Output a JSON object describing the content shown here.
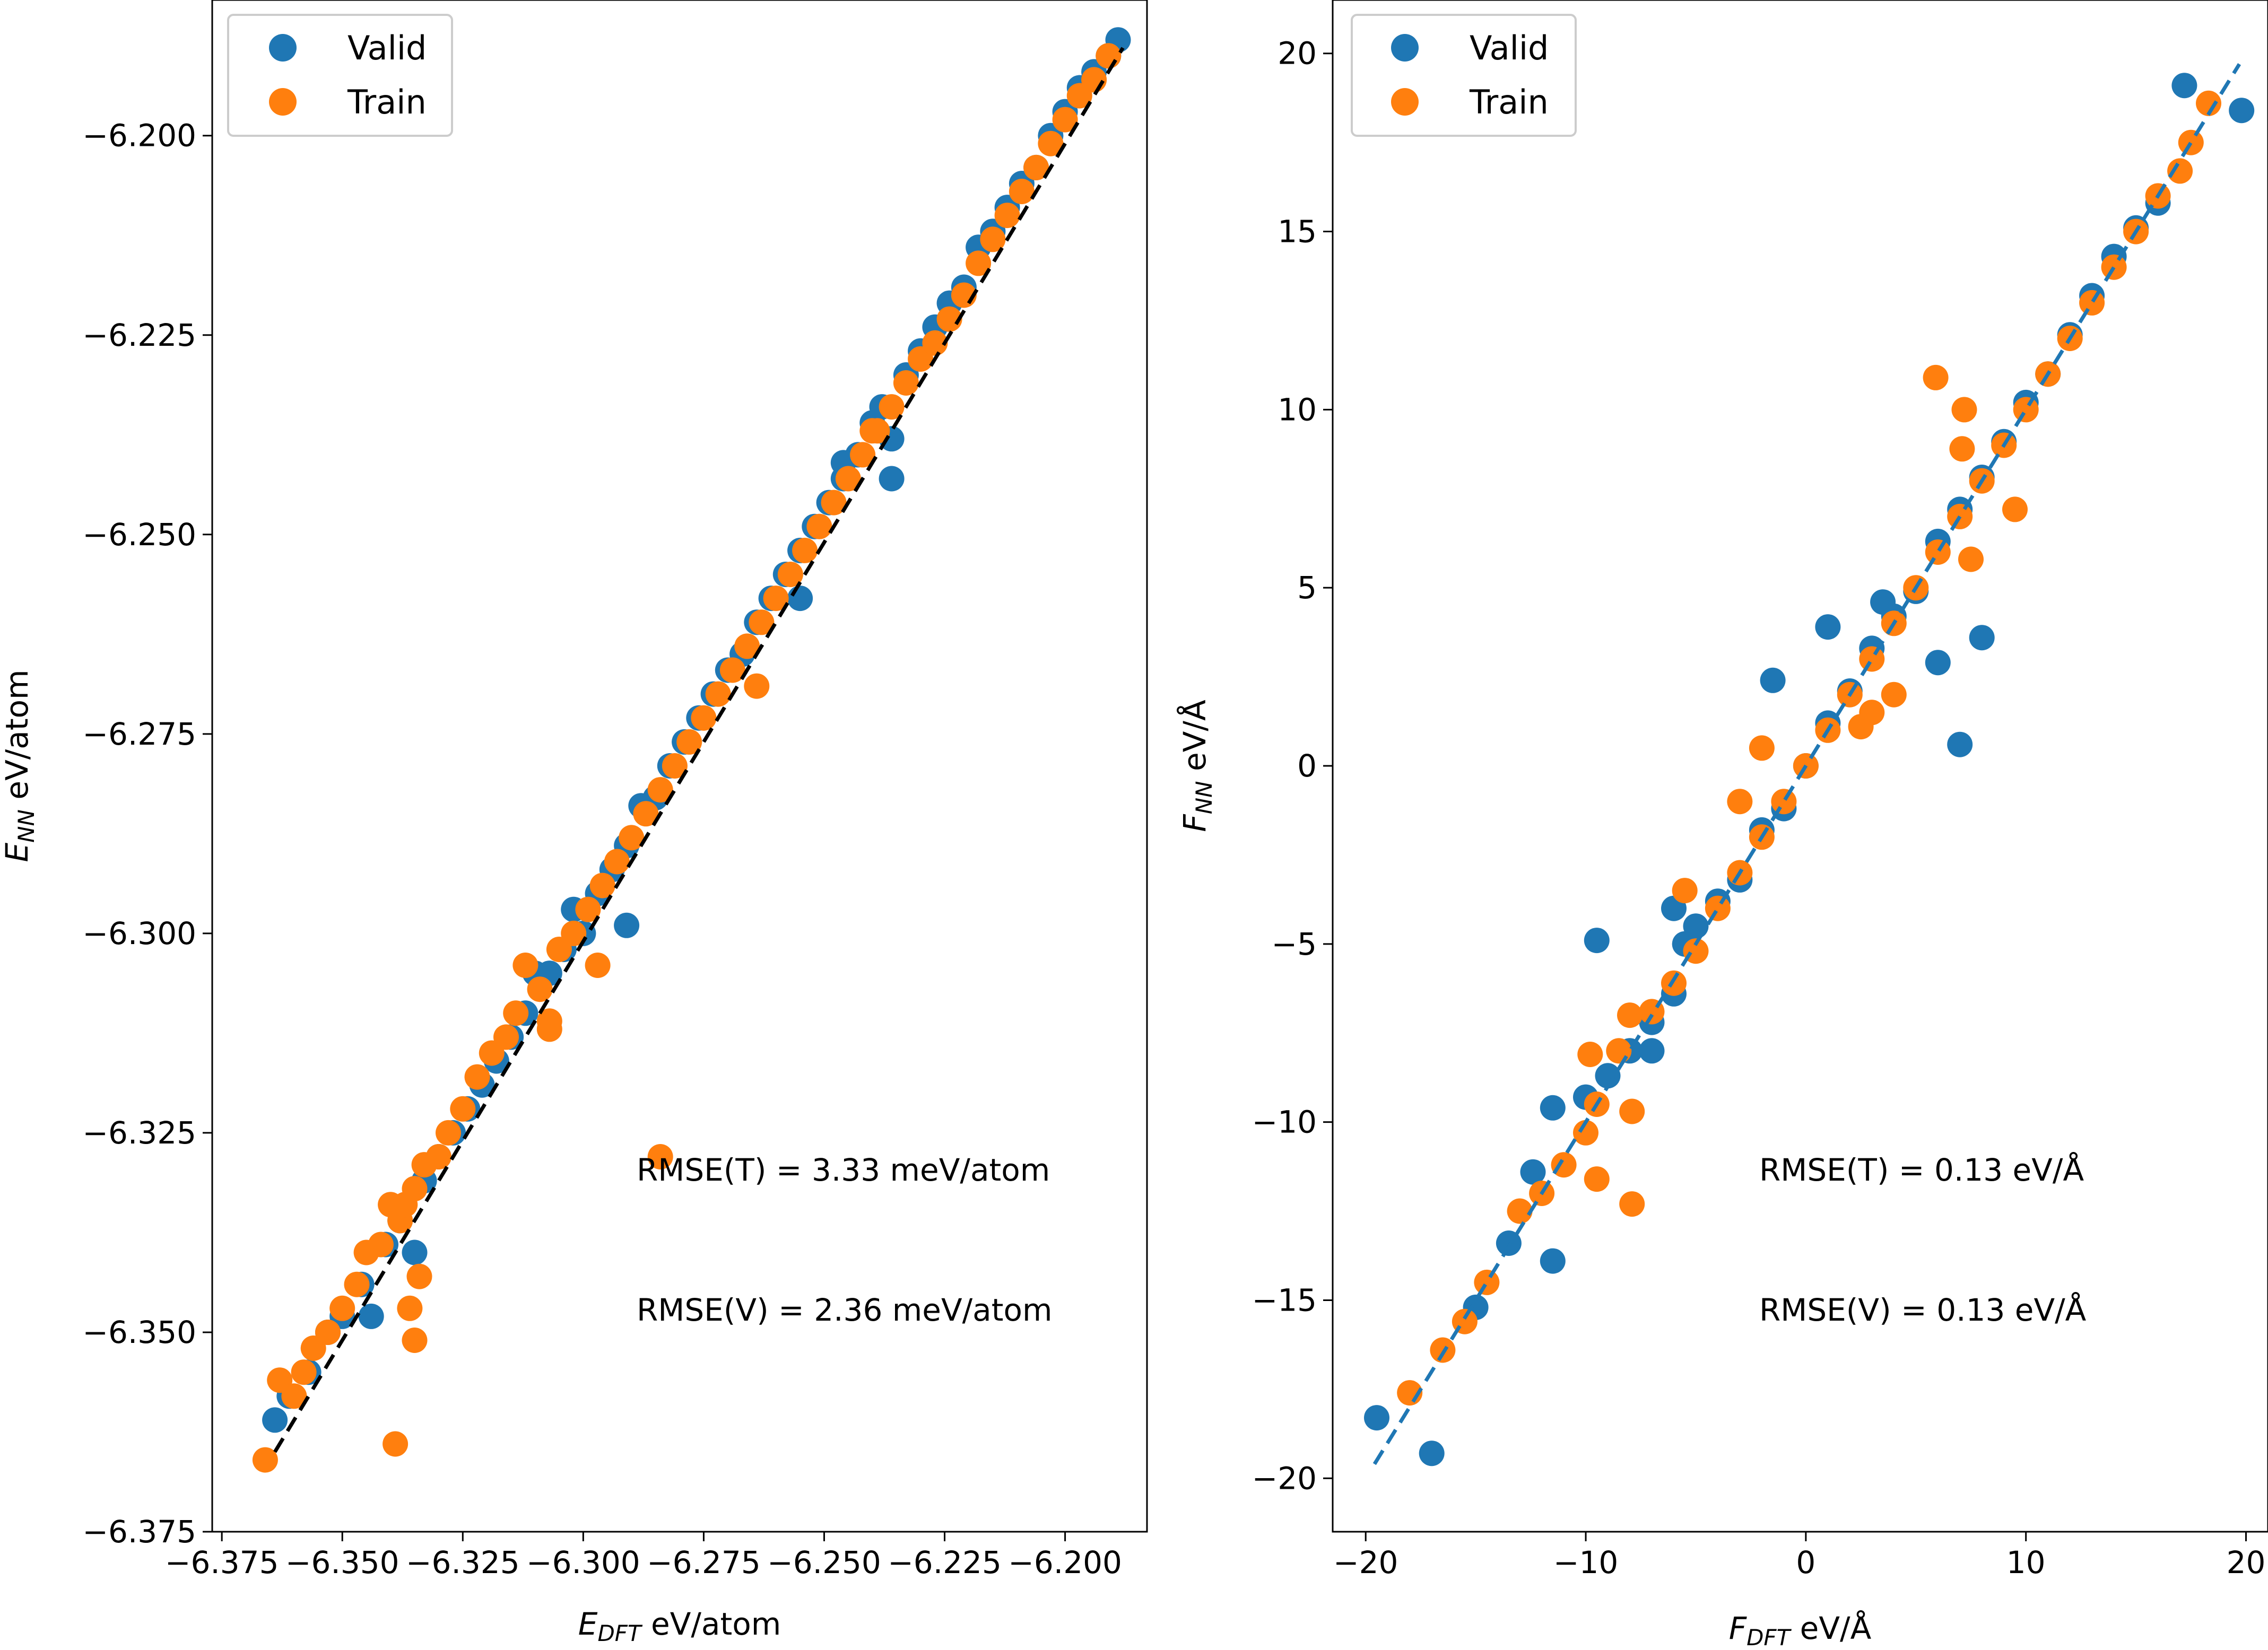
{
  "chart_data": [
    {
      "type": "scatter",
      "xlabel": "E_DFT eV/atom",
      "xlabel_symbol": "E",
      "xlabel_subscript": "DFT",
      "xlabel_unit": " eV/atom",
      "ylabel": "E_NN eV/atom",
      "ylabel_symbol": "E",
      "ylabel_subscript": "NN",
      "ylabel_unit": " eV/atom",
      "xlim": [
        -6.377,
        -6.183
      ],
      "ylim": [
        -6.375,
        -6.183
      ],
      "xticks": [
        -6.375,
        -6.35,
        -6.325,
        -6.3,
        -6.275,
        -6.25,
        -6.225,
        -6.2
      ],
      "xtick_labels": [
        "−6.375",
        "−6.350",
        "−6.325",
        "−6.300",
        "−6.275",
        "−6.250",
        "−6.225",
        "−6.200"
      ],
      "yticks": [
        -6.375,
        -6.35,
        -6.325,
        -6.3,
        -6.275,
        -6.25,
        -6.225,
        -6.2
      ],
      "ytick_labels": [
        "−6.375",
        "−6.350",
        "−6.325",
        "−6.300",
        "−6.275",
        "−6.250",
        "−6.225",
        "−6.200"
      ],
      "legend": {
        "placement": "top-left",
        "entries": [
          "Valid",
          "Train"
        ]
      },
      "reference_line": {
        "style": "dashed",
        "color": "#000000",
        "from": [
          -6.364,
          -6.365
        ],
        "to": [
          -6.188,
          -6.189
        ]
      },
      "annotations": [
        "RMSE(T) = 3.33 meV/atom",
        "RMSE(V) = 2.36 meV/atom"
      ],
      "series": [
        {
          "name": "Valid",
          "color": "#1f77b4",
          "points": [
            [
              -6.364,
              -6.361
            ],
            [
              -6.361,
              -6.358
            ],
            [
              -6.357,
              -6.355
            ],
            [
              -6.353,
              -6.35
            ],
            [
              -6.35,
              -6.348
            ],
            [
              -6.346,
              -6.344
            ],
            [
              -6.344,
              -6.348
            ],
            [
              -6.341,
              -6.339
            ],
            [
              -6.338,
              -6.336
            ],
            [
              -6.335,
              -6.34
            ],
            [
              -6.333,
              -6.331
            ],
            [
              -6.33,
              -6.328
            ],
            [
              -6.327,
              -6.325
            ],
            [
              -6.324,
              -6.322
            ],
            [
              -6.321,
              -6.319
            ],
            [
              -6.318,
              -6.316
            ],
            [
              -6.315,
              -6.313
            ],
            [
              -6.312,
              -6.31
            ],
            [
              -6.31,
              -6.305
            ],
            [
              -6.307,
              -6.305
            ],
            [
              -6.304,
              -6.302
            ],
            [
              -6.3,
              -6.3
            ],
            [
              -6.297,
              -6.295
            ],
            [
              -6.294,
              -6.292
            ],
            [
              -6.291,
              -6.289
            ],
            [
              -6.288,
              -6.284
            ],
            [
              -6.285,
              -6.283
            ],
            [
              -6.282,
              -6.279
            ],
            [
              -6.279,
              -6.276
            ],
            [
              -6.276,
              -6.273
            ],
            [
              -6.273,
              -6.27
            ],
            [
              -6.27,
              -6.267
            ],
            [
              -6.267,
              -6.265
            ],
            [
              -6.264,
              -6.261
            ],
            [
              -6.261,
              -6.258
            ],
            [
              -6.258,
              -6.255
            ],
            [
              -6.255,
              -6.252
            ],
            [
              -6.252,
              -6.249
            ],
            [
              -6.249,
              -6.246
            ],
            [
              -6.246,
              -6.243
            ],
            [
              -6.243,
              -6.24
            ],
            [
              -6.24,
              -6.236
            ],
            [
              -6.238,
              -6.234
            ],
            [
              -6.236,
              -6.238
            ],
            [
              -6.233,
              -6.23
            ],
            [
              -6.23,
              -6.227
            ],
            [
              -6.227,
              -6.224
            ],
            [
              -6.224,
              -6.221
            ],
            [
              -6.221,
              -6.219
            ],
            [
              -6.218,
              -6.214
            ],
            [
              -6.215,
              -6.212
            ],
            [
              -6.212,
              -6.209
            ],
            [
              -6.209,
              -6.206
            ],
            [
              -6.206,
              -6.204
            ],
            [
              -6.203,
              -6.2
            ],
            [
              -6.2,
              -6.197
            ],
            [
              -6.197,
              -6.194
            ],
            [
              -6.194,
              -6.192
            ],
            [
              -6.191,
              -6.19
            ],
            [
              -6.189,
              -6.188
            ],
            [
              -6.255,
              -6.258
            ],
            [
              -6.291,
              -6.299
            ],
            [
              -6.302,
              -6.297
            ],
            [
              -6.246,
              -6.241
            ],
            [
              -6.236,
              -6.243
            ]
          ]
        },
        {
          "name": "Train",
          "color": "#ff7f0e",
          "points": [
            [
              -6.366,
              -6.366
            ],
            [
              -6.363,
              -6.356
            ],
            [
              -6.36,
              -6.358
            ],
            [
              -6.358,
              -6.355
            ],
            [
              -6.356,
              -6.352
            ],
            [
              -6.353,
              -6.35
            ],
            [
              -6.35,
              -6.347
            ],
            [
              -6.347,
              -6.344
            ],
            [
              -6.345,
              -6.34
            ],
            [
              -6.342,
              -6.339
            ],
            [
              -6.34,
              -6.334
            ],
            [
              -6.338,
              -6.336
            ],
            [
              -6.337,
              -6.334
            ],
            [
              -6.335,
              -6.332
            ],
            [
              -6.333,
              -6.329
            ],
            [
              -6.33,
              -6.328
            ],
            [
              -6.328,
              -6.325
            ],
            [
              -6.325,
              -6.322
            ],
            [
              -6.322,
              -6.318
            ],
            [
              -6.319,
              -6.315
            ],
            [
              -6.316,
              -6.313
            ],
            [
              -6.314,
              -6.31
            ],
            [
              -6.312,
              -6.304
            ],
            [
              -6.309,
              -6.307
            ],
            [
              -6.307,
              -6.311
            ],
            [
              -6.305,
              -6.302
            ],
            [
              -6.302,
              -6.3
            ],
            [
              -6.299,
              -6.297
            ],
            [
              -6.296,
              -6.294
            ],
            [
              -6.293,
              -6.291
            ],
            [
              -6.29,
              -6.288
            ],
            [
              -6.287,
              -6.285
            ],
            [
              -6.284,
              -6.282
            ],
            [
              -6.281,
              -6.279
            ],
            [
              -6.278,
              -6.276
            ],
            [
              -6.275,
              -6.273
            ],
            [
              -6.272,
              -6.27
            ],
            [
              -6.269,
              -6.267
            ],
            [
              -6.266,
              -6.264
            ],
            [
              -6.263,
              -6.261
            ],
            [
              -6.26,
              -6.258
            ],
            [
              -6.257,
              -6.255
            ],
            [
              -6.254,
              -6.252
            ],
            [
              -6.251,
              -6.249
            ],
            [
              -6.248,
              -6.246
            ],
            [
              -6.245,
              -6.243
            ],
            [
              -6.242,
              -6.24
            ],
            [
              -6.239,
              -6.237
            ],
            [
              -6.236,
              -6.234
            ],
            [
              -6.233,
              -6.231
            ],
            [
              -6.23,
              -6.228
            ],
            [
              -6.227,
              -6.226
            ],
            [
              -6.224,
              -6.223
            ],
            [
              -6.221,
              -6.22
            ],
            [
              -6.218,
              -6.216
            ],
            [
              -6.215,
              -6.213
            ],
            [
              -6.212,
              -6.21
            ],
            [
              -6.209,
              -6.207
            ],
            [
              -6.206,
              -6.204
            ],
            [
              -6.203,
              -6.201
            ],
            [
              -6.2,
              -6.198
            ],
            [
              -6.197,
              -6.195
            ],
            [
              -6.194,
              -6.193
            ],
            [
              -6.191,
              -6.19
            ],
            [
              -6.339,
              -6.364
            ],
            [
              -6.335,
              -6.351
            ],
            [
              -6.336,
              -6.347
            ],
            [
              -6.334,
              -6.343
            ],
            [
              -6.284,
              -6.328
            ],
            [
              -6.307,
              -6.312
            ],
            [
              -6.297,
              -6.304
            ],
            [
              -6.264,
              -6.269
            ],
            [
              -6.24,
              -6.237
            ]
          ]
        }
      ]
    },
    {
      "type": "scatter",
      "xlabel": "F_DFT eV/Å",
      "xlabel_symbol": "F",
      "xlabel_subscript": "DFT",
      "xlabel_unit": " eV/Å",
      "ylabel": "F_NN eV/Å",
      "ylabel_symbol": "F",
      "ylabel_subscript": "NN",
      "ylabel_unit": " eV/Å",
      "xlim": [
        -21.5,
        21.0
      ],
      "ylim": [
        -21.5,
        21.5
      ],
      "xticks": [
        -20,
        -10,
        0,
        10,
        20
      ],
      "xtick_labels": [
        "−20",
        "−10",
        "0",
        "10",
        "20"
      ],
      "yticks": [
        -20,
        -15,
        -10,
        -5,
        0,
        5,
        10,
        15,
        20
      ],
      "ytick_labels": [
        "−20",
        "−15",
        "−10",
        "−5",
        "0",
        "5",
        "10",
        "15",
        "20"
      ],
      "legend": {
        "placement": "top-left",
        "entries": [
          "Valid",
          "Train"
        ]
      },
      "reference_line": {
        "style": "dashed",
        "color": "#1f77b4",
        "from": [
          -19.6,
          -19.6
        ],
        "to": [
          19.7,
          19.7
        ]
      },
      "annotations": [
        "RMSE(T) = 0.13 eV/Å",
        "RMSE(V) = 0.13 eV/Å"
      ],
      "series": [
        {
          "name": "Valid",
          "color": "#1f77b4",
          "points": [
            [
              -19.5,
              -18.3
            ],
            [
              -17.0,
              -19.3
            ],
            [
              -15.0,
              -15.2
            ],
            [
              -13.5,
              -13.4
            ],
            [
              -12.4,
              -11.4
            ],
            [
              -11.5,
              -13.9
            ],
            [
              -11.5,
              -9.6
            ],
            [
              -9.5,
              -4.9
            ],
            [
              -10.0,
              -9.3
            ],
            [
              -9.0,
              -8.7
            ],
            [
              -8.0,
              -8.0
            ],
            [
              -7.0,
              -7.2
            ],
            [
              -6.0,
              -6.4
            ],
            [
              -5.5,
              -5.0
            ],
            [
              -5.0,
              -4.5
            ],
            [
              -4.0,
              -3.8
            ],
            [
              -3.0,
              -3.2
            ],
            [
              -2.0,
              -1.8
            ],
            [
              -1.0,
              -1.2
            ],
            [
              0.0,
              0.0
            ],
            [
              1.0,
              1.2
            ],
            [
              2.0,
              2.1
            ],
            [
              -1.5,
              2.4
            ],
            [
              1.0,
              3.9
            ],
            [
              3.0,
              3.3
            ],
            [
              4.0,
              4.2
            ],
            [
              5.0,
              4.9
            ],
            [
              6.0,
              6.3
            ],
            [
              7.0,
              7.2
            ],
            [
              8.0,
              8.1
            ],
            [
              6.0,
              2.9
            ],
            [
              8.0,
              3.6
            ],
            [
              7.0,
              0.6
            ],
            [
              9.0,
              9.1
            ],
            [
              10.0,
              10.2
            ],
            [
              11.0,
              11.0
            ],
            [
              12.0,
              12.1
            ],
            [
              13.0,
              13.2
            ],
            [
              14.0,
              14.3
            ],
            [
              15.0,
              15.1
            ],
            [
              16.0,
              15.8
            ],
            [
              17.2,
              19.1
            ],
            [
              19.8,
              18.4
            ],
            [
              -7.0,
              -8.0
            ],
            [
              -6.0,
              -4.0
            ],
            [
              3.5,
              4.6
            ]
          ]
        },
        {
          "name": "Train",
          "color": "#ff7f0e",
          "points": [
            [
              -18.0,
              -17.6
            ],
            [
              -16.5,
              -16.4
            ],
            [
              -15.5,
              -15.6
            ],
            [
              -14.5,
              -14.5
            ],
            [
              -13.0,
              -12.5
            ],
            [
              -12.0,
              -12.0
            ],
            [
              -11.0,
              -11.2
            ],
            [
              -10.0,
              -10.3
            ],
            [
              -9.5,
              -9.5
            ],
            [
              -9.8,
              -8.1
            ],
            [
              -9.5,
              -11.6
            ],
            [
              -7.9,
              -12.3
            ],
            [
              -7.9,
              -9.7
            ],
            [
              -8.5,
              -8.0
            ],
            [
              -8.0,
              -7.0
            ],
            [
              -7.0,
              -6.9
            ],
            [
              -6.0,
              -6.1
            ],
            [
              -5.0,
              -5.2
            ],
            [
              -4.0,
              -4.0
            ],
            [
              -3.0,
              -3.0
            ],
            [
              -2.0,
              -2.0
            ],
            [
              -1.0,
              -1.0
            ],
            [
              0.0,
              0.0
            ],
            [
              1.0,
              1.0
            ],
            [
              2.0,
              2.0
            ],
            [
              3.0,
              3.0
            ],
            [
              4.0,
              4.0
            ],
            [
              5.0,
              5.0
            ],
            [
              6.0,
              6.0
            ],
            [
              7.0,
              7.0
            ],
            [
              8.0,
              8.0
            ],
            [
              9.0,
              9.0
            ],
            [
              10.0,
              10.0
            ],
            [
              11.0,
              11.0
            ],
            [
              12.0,
              12.0
            ],
            [
              13.0,
              13.0
            ],
            [
              14.0,
              14.0
            ],
            [
              15.0,
              15.0
            ],
            [
              16.0,
              16.0
            ],
            [
              17.0,
              16.7
            ],
            [
              17.5,
              17.5
            ],
            [
              18.3,
              18.6
            ],
            [
              5.9,
              10.9
            ],
            [
              7.2,
              10.0
            ],
            [
              7.1,
              8.9
            ],
            [
              9.5,
              7.2
            ],
            [
              7.5,
              5.8
            ],
            [
              4.0,
              2.0
            ],
            [
              2.5,
              1.1
            ],
            [
              -3.0,
              -1.0
            ],
            [
              -5.5,
              -3.5
            ],
            [
              3.0,
              1.5
            ],
            [
              -2.0,
              0.5
            ]
          ]
        }
      ]
    }
  ]
}
